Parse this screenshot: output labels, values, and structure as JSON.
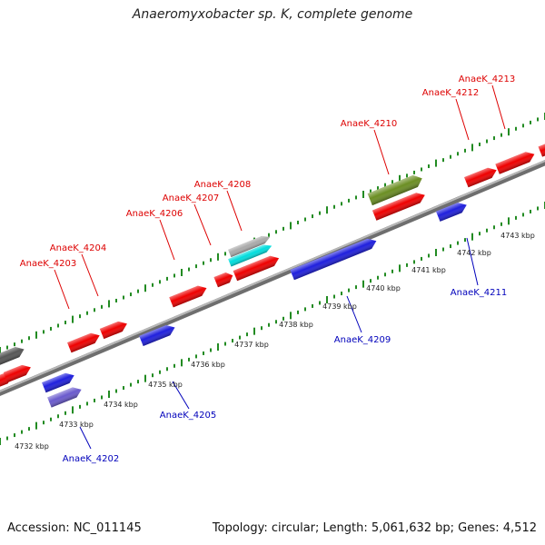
{
  "header": {
    "title": "Anaeromyxobacter sp. K, complete genome"
  },
  "footer": {
    "accession": "Accession: NC_011145",
    "topology": "Topology: circular; Length: 5,061,632 bp; Genes: 4,512"
  },
  "colors": {
    "forward_gene": "#ee0000",
    "reverse_gene": "#1f1fdd",
    "olive_gene": "#6b8e23",
    "cyan_gene": "#00dddd",
    "gray_gene": "#aaaaaa",
    "lavender_gene": "#6a5acd",
    "dark_gray_gene": "#555555",
    "backbone": "#888888",
    "tick": "#228b22",
    "forward_label": "#dd0000",
    "reverse_label": "#0000bb"
  },
  "gene_labels": [
    {
      "text": "AnaeK_4202",
      "strand": "reverse"
    },
    {
      "text": "AnaeK_4203",
      "strand": "forward"
    },
    {
      "text": "AnaeK_4204",
      "strand": "forward"
    },
    {
      "text": "AnaeK_4205",
      "strand": "reverse"
    },
    {
      "text": "AnaeK_4206",
      "strand": "forward"
    },
    {
      "text": "AnaeK_4207",
      "strand": "forward"
    },
    {
      "text": "AnaeK_4208",
      "strand": "forward"
    },
    {
      "text": "AnaeK_4209",
      "strand": "reverse"
    },
    {
      "text": "AnaeK_4210",
      "strand": "forward"
    },
    {
      "text": "AnaeK_4211",
      "strand": "reverse"
    },
    {
      "text": "AnaeK_4212",
      "strand": "forward"
    },
    {
      "text": "AnaeK_4213",
      "strand": "forward"
    }
  ],
  "kbp_labels": [
    "4732 kbp",
    "4733 kbp",
    "4734 kbp",
    "4735 kbp",
    "4736 kbp",
    "4737 kbp",
    "4738 kbp",
    "4739 kbp",
    "4740 kbp",
    "4741 kbp",
    "4742 kbp",
    "4743 kbp"
  ]
}
